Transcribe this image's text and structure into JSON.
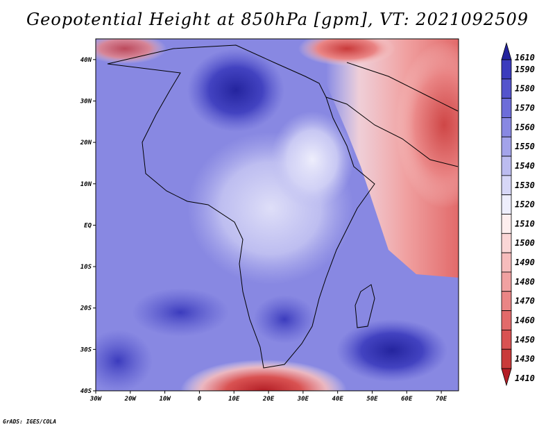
{
  "title": "Geopotential Height at 850hPa [gpm], VT: 2021092509",
  "credit": "GrADS: IGES/COLA",
  "map": {
    "lon_range": [
      -30,
      75
    ],
    "lat_range": [
      -40,
      45
    ],
    "lon_ticks": [
      {
        "value": -30,
        "label": "30W"
      },
      {
        "value": -20,
        "label": "20W"
      },
      {
        "value": -10,
        "label": "10W"
      },
      {
        "value": 0,
        "label": "0"
      },
      {
        "value": 10,
        "label": "10E"
      },
      {
        "value": 20,
        "label": "20E"
      },
      {
        "value": 30,
        "label": "30E"
      },
      {
        "value": 40,
        "label": "40E"
      },
      {
        "value": 50,
        "label": "50E"
      },
      {
        "value": 60,
        "label": "60E"
      },
      {
        "value": 70,
        "label": "70E"
      }
    ],
    "lat_ticks": [
      {
        "value": 40,
        "label": "40N"
      },
      {
        "value": 30,
        "label": "30N"
      },
      {
        "value": 20,
        "label": "20N"
      },
      {
        "value": 10,
        "label": "10N"
      },
      {
        "value": 0,
        "label": "EQ"
      },
      {
        "value": -10,
        "label": "10S"
      },
      {
        "value": -20,
        "label": "20S"
      },
      {
        "value": -30,
        "label": "30S"
      },
      {
        "value": -40,
        "label": "40S"
      }
    ]
  },
  "colorbar": {
    "levels": [
      {
        "label": "1410",
        "color": "#b31e26"
      },
      {
        "label": "1430",
        "color": "#c93a3a"
      },
      {
        "label": "1450",
        "color": "#d95252"
      },
      {
        "label": "1460",
        "color": "#e26a6a"
      },
      {
        "label": "1470",
        "color": "#ea8585"
      },
      {
        "label": "1480",
        "color": "#f0a1a1"
      },
      {
        "label": "1490",
        "color": "#f6bcbc"
      },
      {
        "label": "1500",
        "color": "#fad6d6"
      },
      {
        "label": "1510",
        "color": "#fdeeee"
      },
      {
        "label": "1520",
        "color": "#eeeefc"
      },
      {
        "label": "1530",
        "color": "#d7d7f7"
      },
      {
        "label": "1540",
        "color": "#bcbcf0"
      },
      {
        "label": "1550",
        "color": "#a3a3ea"
      },
      {
        "label": "1560",
        "color": "#8888e2"
      },
      {
        "label": "1570",
        "color": "#6d6dd9"
      },
      {
        "label": "1580",
        "color": "#5454cc"
      },
      {
        "label": "1590",
        "color": "#3b3bbd"
      },
      {
        "label": "1610",
        "color": "#24249e"
      }
    ]
  }
}
